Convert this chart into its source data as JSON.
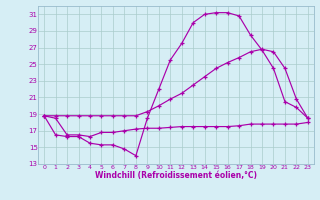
{
  "bg_color": "#d6eef5",
  "line_color": "#aa00aa",
  "grid_color": "#aacccc",
  "xlabel": "Windchill (Refroidissement éolien,°C)",
  "ylim": [
    13,
    32
  ],
  "xlim": [
    -0.5,
    23.5
  ],
  "yticks": [
    13,
    15,
    17,
    19,
    21,
    23,
    25,
    27,
    29,
    31
  ],
  "xticks": [
    0,
    1,
    2,
    3,
    4,
    5,
    6,
    7,
    8,
    9,
    10,
    11,
    12,
    13,
    14,
    15,
    16,
    17,
    18,
    19,
    20,
    21,
    22,
    23
  ],
  "line1_x": [
    0,
    1,
    2,
    3,
    4,
    5,
    6,
    7,
    8,
    9,
    10,
    11,
    12,
    13,
    14,
    15,
    16,
    17,
    18,
    19,
    20,
    21,
    22,
    23
  ],
  "line1_y": [
    18.8,
    16.5,
    16.3,
    16.3,
    15.5,
    15.3,
    15.3,
    14.8,
    14.0,
    18.5,
    22.0,
    25.5,
    27.5,
    30.0,
    31.0,
    31.2,
    31.2,
    30.8,
    28.5,
    26.7,
    24.5,
    20.5,
    19.8,
    18.5
  ],
  "line2_x": [
    0,
    1,
    2,
    3,
    4,
    5,
    6,
    7,
    8,
    9,
    10,
    11,
    12,
    13,
    14,
    15,
    16,
    17,
    18,
    19,
    20,
    21,
    22,
    23
  ],
  "line2_y": [
    18.8,
    18.5,
    16.5,
    16.5,
    16.3,
    16.8,
    16.8,
    17.0,
    17.2,
    17.3,
    17.3,
    17.4,
    17.5,
    17.5,
    17.5,
    17.5,
    17.5,
    17.6,
    17.8,
    17.8,
    17.8,
    17.8,
    17.8,
    18.0
  ],
  "line3_x": [
    0,
    1,
    2,
    3,
    4,
    5,
    6,
    7,
    8,
    9,
    10,
    11,
    12,
    13,
    14,
    15,
    16,
    17,
    18,
    19,
    20,
    21,
    22,
    23
  ],
  "line3_y": [
    18.8,
    18.8,
    18.8,
    18.8,
    18.8,
    18.8,
    18.8,
    18.8,
    18.8,
    19.3,
    20.0,
    20.8,
    21.5,
    22.5,
    23.5,
    24.5,
    25.2,
    25.8,
    26.5,
    26.8,
    26.5,
    24.5,
    20.8,
    18.5
  ]
}
